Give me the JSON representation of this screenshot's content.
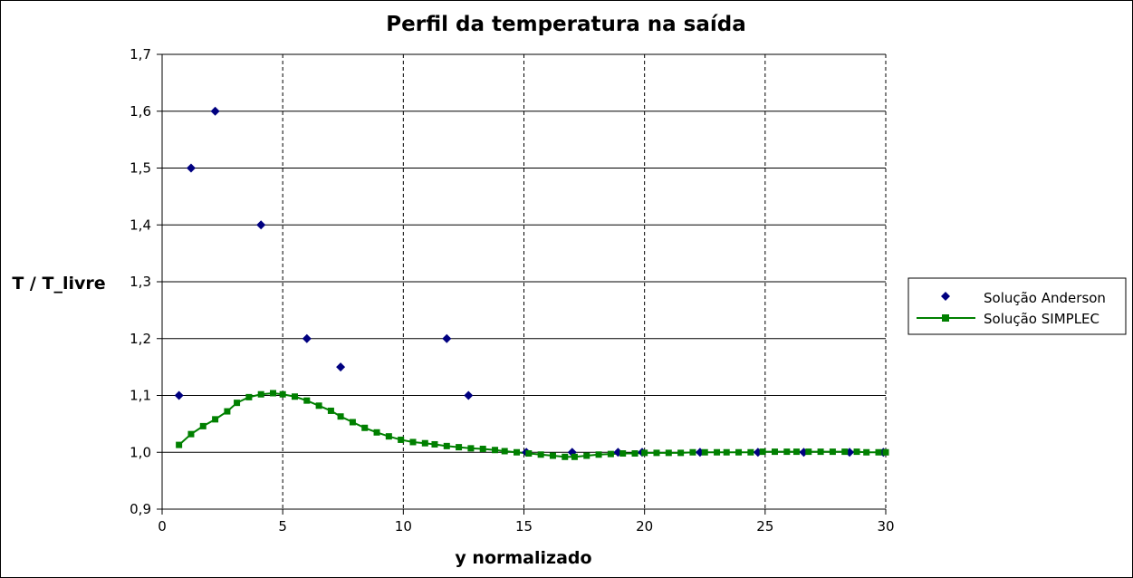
{
  "chart_data": {
    "type": "scatter",
    "title": "Perfil da temperatura na saída",
    "xlabel": "y normalizado",
    "ylabel": "T / T_livre",
    "xlim": [
      0,
      30
    ],
    "ylim": [
      0.9,
      1.7
    ],
    "x_ticks": [
      {
        "value": 0,
        "label": "0"
      },
      {
        "value": 5,
        "label": "5"
      },
      {
        "value": 10,
        "label": "10"
      },
      {
        "value": 15,
        "label": "15"
      },
      {
        "value": 20,
        "label": "20"
      },
      {
        "value": 25,
        "label": "25"
      },
      {
        "value": 30,
        "label": "30"
      }
    ],
    "y_ticks": [
      {
        "value": 0.9,
        "label": "0,9"
      },
      {
        "value": 1.0,
        "label": "1,0"
      },
      {
        "value": 1.1,
        "label": "1,1"
      },
      {
        "value": 1.2,
        "label": "1,2"
      },
      {
        "value": 1.3,
        "label": "1,3"
      },
      {
        "value": 1.4,
        "label": "1,4"
      },
      {
        "value": 1.5,
        "label": "1,5"
      },
      {
        "value": 1.6,
        "label": "1,6"
      },
      {
        "value": 1.7,
        "label": "1,7"
      }
    ],
    "grid": {
      "horizontal": "solid",
      "vertical": "dashed"
    },
    "legend_position": "right",
    "series": [
      {
        "name": "Solução Anderson",
        "style": "markers",
        "marker": "diamond",
        "color": "#000080",
        "points": [
          [
            0.7,
            1.1
          ],
          [
            1.2,
            1.5
          ],
          [
            2.2,
            1.6
          ],
          [
            4.1,
            1.4
          ],
          [
            6.0,
            1.2
          ],
          [
            7.4,
            1.15
          ],
          [
            11.8,
            1.2
          ],
          [
            12.7,
            1.1
          ],
          [
            15.1,
            1.0
          ],
          [
            17.0,
            1.0
          ],
          [
            18.9,
            1.0
          ],
          [
            19.9,
            1.0
          ],
          [
            22.3,
            1.0
          ],
          [
            24.7,
            1.0
          ],
          [
            26.6,
            1.0
          ],
          [
            28.5,
            1.0
          ],
          [
            29.9,
            1.0
          ]
        ]
      },
      {
        "name": "Solução SIMPLEC",
        "style": "line-markers",
        "marker": "square",
        "color": "#008000",
        "points": [
          [
            0.7,
            1.013
          ],
          [
            1.2,
            1.032
          ],
          [
            1.7,
            1.046
          ],
          [
            2.2,
            1.058
          ],
          [
            2.7,
            1.072
          ],
          [
            3.1,
            1.087
          ],
          [
            3.6,
            1.097
          ],
          [
            4.1,
            1.102
          ],
          [
            4.6,
            1.104
          ],
          [
            5.0,
            1.102
          ],
          [
            5.5,
            1.098
          ],
          [
            6.0,
            1.091
          ],
          [
            6.5,
            1.082
          ],
          [
            7.0,
            1.073
          ],
          [
            7.4,
            1.063
          ],
          [
            7.9,
            1.053
          ],
          [
            8.4,
            1.043
          ],
          [
            8.9,
            1.035
          ],
          [
            9.4,
            1.028
          ],
          [
            9.9,
            1.022
          ],
          [
            10.4,
            1.018
          ],
          [
            10.9,
            1.016
          ],
          [
            11.3,
            1.014
          ],
          [
            11.8,
            1.011
          ],
          [
            12.3,
            1.009
          ],
          [
            12.8,
            1.007
          ],
          [
            13.3,
            1.006
          ],
          [
            13.8,
            1.004
          ],
          [
            14.2,
            1.002
          ],
          [
            14.7,
            1.0
          ],
          [
            15.2,
            0.998
          ],
          [
            15.7,
            0.996
          ],
          [
            16.2,
            0.994
          ],
          [
            16.7,
            0.992
          ],
          [
            17.1,
            0.992
          ],
          [
            17.6,
            0.994
          ],
          [
            18.1,
            0.996
          ],
          [
            18.6,
            0.997
          ],
          [
            19.1,
            0.998
          ],
          [
            19.6,
            0.998
          ],
          [
            20.0,
            0.999
          ],
          [
            20.5,
            0.999
          ],
          [
            21.0,
            0.999
          ],
          [
            21.5,
            0.999
          ],
          [
            22.0,
            1.0
          ],
          [
            22.5,
            1.0
          ],
          [
            23.0,
            1.0
          ],
          [
            23.4,
            1.0
          ],
          [
            23.9,
            1.0
          ],
          [
            24.4,
            1.0
          ],
          [
            24.9,
            1.001
          ],
          [
            25.4,
            1.001
          ],
          [
            25.9,
            1.001
          ],
          [
            26.3,
            1.001
          ],
          [
            26.8,
            1.001
          ],
          [
            27.3,
            1.001
          ],
          [
            27.8,
            1.001
          ],
          [
            28.3,
            1.001
          ],
          [
            28.8,
            1.001
          ],
          [
            29.2,
            1.0
          ],
          [
            29.7,
            1.0
          ],
          [
            30.0,
            1.0
          ]
        ]
      }
    ]
  }
}
